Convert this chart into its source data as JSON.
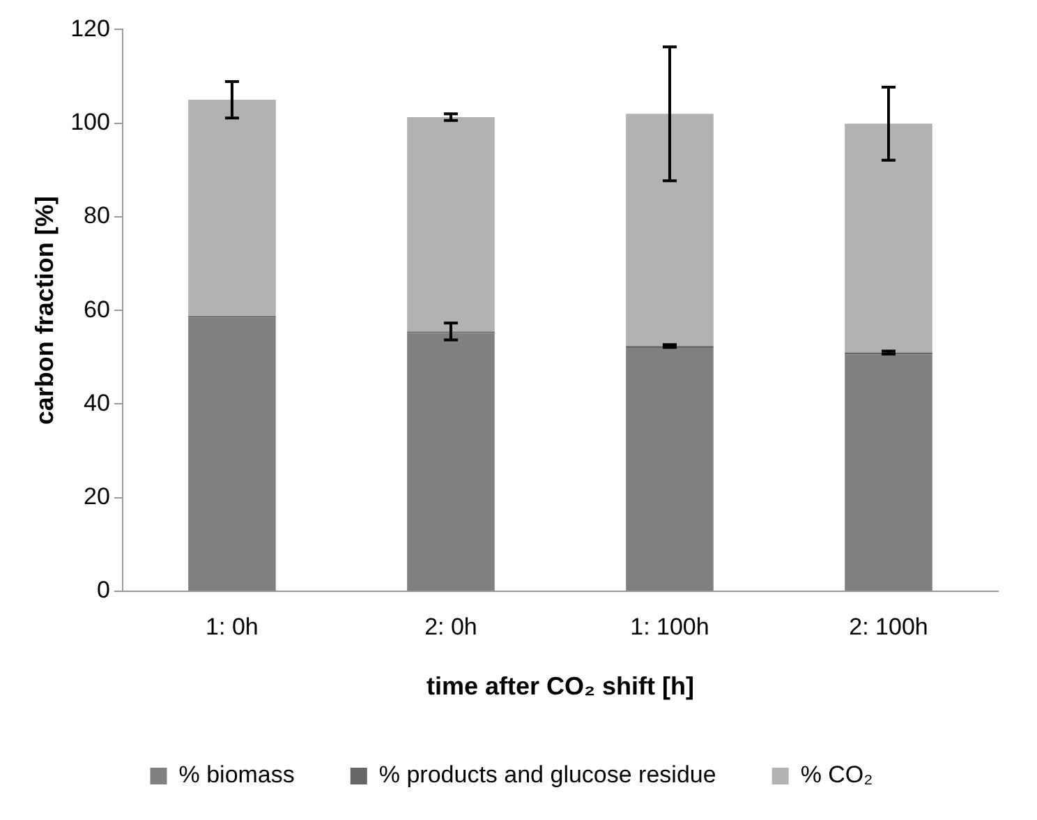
{
  "chart_data": {
    "type": "bar",
    "stacked": true,
    "xlabel": "time after CO₂ shift [h]",
    "ylabel": "carbon fraction [%]",
    "categories": [
      "1: 0h",
      "2: 0h",
      "1: 100h",
      "2: 100h"
    ],
    "series": [
      {
        "name": "% biomass",
        "color": "#808080",
        "values": [
          58.5,
          55.2,
          52.0,
          50.6
        ]
      },
      {
        "name": "% products and glucose residue",
        "color": "#666666",
        "values": [
          0.3,
          0.3,
          0.4,
          0.4
        ],
        "errors": [
          null,
          1.8,
          0.3,
          0.3
        ]
      },
      {
        "name": "% CO₂",
        "color": "#b2b2b2",
        "values": [
          46.2,
          45.8,
          49.6,
          48.9
        ],
        "errors": [
          3.9,
          0.7,
          14.3,
          7.8
        ]
      }
    ],
    "ylim": [
      0,
      120
    ],
    "yticks": [
      0,
      20,
      40,
      60,
      80,
      100,
      120
    ],
    "grid": false,
    "legend": "bottom"
  }
}
